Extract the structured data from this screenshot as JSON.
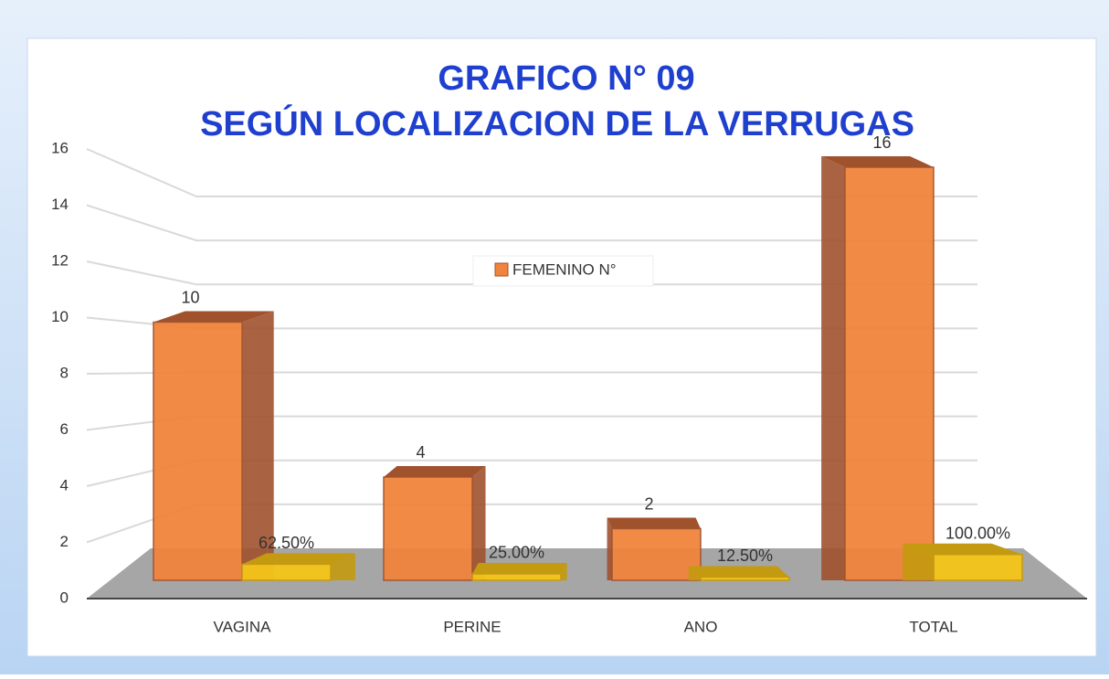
{
  "chart_data": {
    "type": "bar3d",
    "title": "GRAFICO N° 09",
    "subtitle": "SEGÚN LOCALIZACION DE LA VERRUGAS",
    "categories": [
      "VAGINA",
      "PERINE",
      "ANO",
      "TOTAL"
    ],
    "series": [
      {
        "name": "FEMENINO N°",
        "color": "#f0843c",
        "values": [
          10,
          4,
          2,
          16
        ]
      },
      {
        "color": "#f5c518",
        "values": [
          0.625,
          0.25,
          0.125,
          1
        ],
        "value_labels": [
          "62.50%",
          "25.00%",
          "12.50%",
          "100.00%"
        ]
      }
    ],
    "ylim": [
      0,
      16
    ],
    "yticks": [
      0,
      2,
      4,
      6,
      8,
      10,
      12,
      14,
      16
    ],
    "grid": true,
    "legend": "center"
  }
}
